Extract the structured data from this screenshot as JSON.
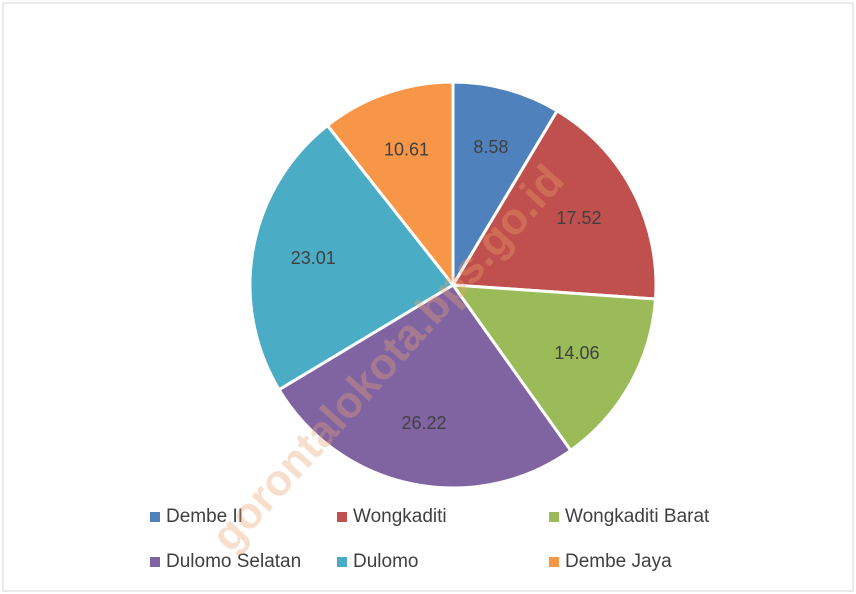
{
  "chart_data": {
    "type": "pie",
    "categories": [
      "Dembe II",
      "Wongkaditi",
      "Wongkaditi Barat",
      "Dulomo Selatan",
      "Dulomo",
      "Dembe Jaya"
    ],
    "values": [
      8.58,
      17.52,
      14.06,
      26.22,
      23.01,
      10.61
    ],
    "colors": [
      "#4f81bd",
      "#c0504d",
      "#9bbb59",
      "#8064a2",
      "#4bacc6",
      "#f79646"
    ],
    "legend": "bottom",
    "watermark": "gorontalokota.bps.go.id"
  }
}
